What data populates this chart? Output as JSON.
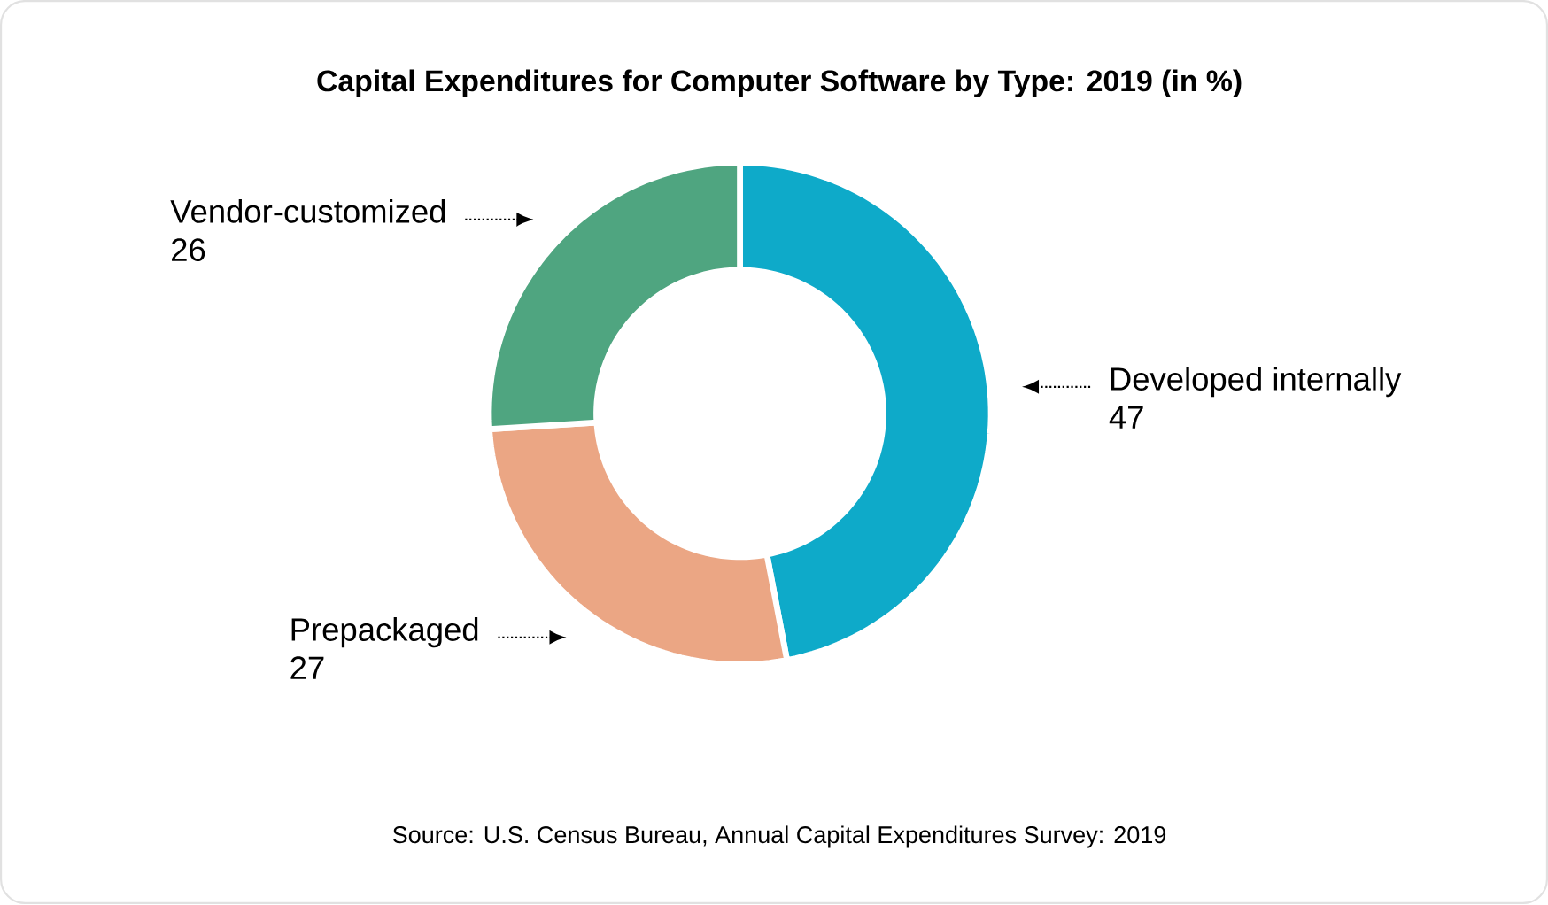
{
  "chart_data": {
    "type": "donut",
    "title": "Capital Expenditures for Computer Software by Type: 2019 (in %)",
    "categories": [
      "Developed internally",
      "Prepackaged",
      "Vendor-customized"
    ],
    "values": [
      47,
      27,
      26
    ],
    "colors": [
      "#0eaac9",
      "#eba684",
      "#4fa580"
    ],
    "data_labels": true,
    "annotations": [
      "Source: U.S. Census Bureau, Annual Capital Expenditures Survey: 2019"
    ]
  }
}
